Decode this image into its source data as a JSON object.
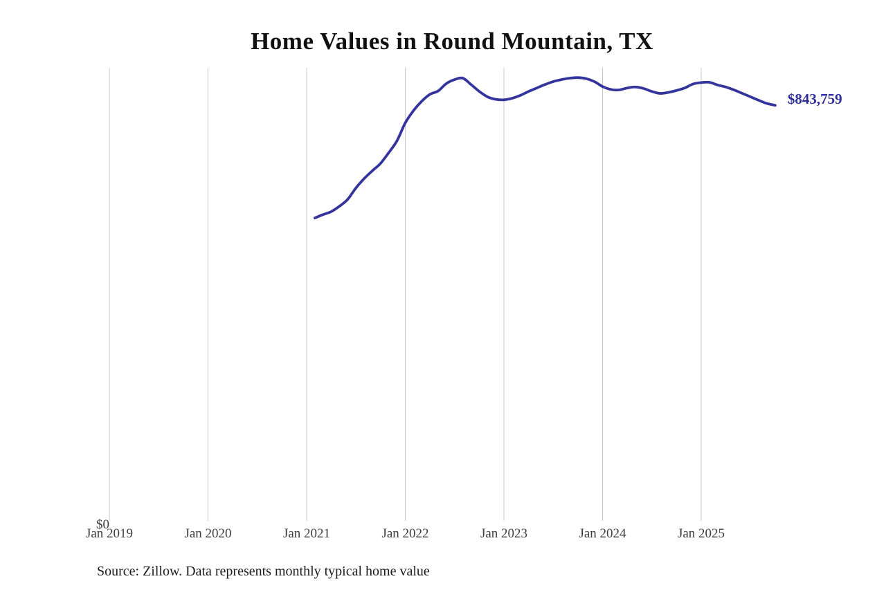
{
  "page": {
    "title": "Home Values in Round Mountain, TX",
    "source_note": "Source: Zillow. Data represents monthly typical home value"
  },
  "colors": {
    "line": "#34349d",
    "latest_value_label": "#2d2d9b",
    "gridline": "#c9c9c9",
    "title_text": "#111111",
    "axis_label": "#3c3c3c",
    "source_text": "#1b1b1b",
    "background": "#ffffff"
  },
  "chart_data": {
    "type": "line",
    "title": "Home Values in Round Mountain, TX",
    "xlabel": "",
    "ylabel": "",
    "ylim": [
      0,
      920000
    ],
    "grid": "vertical-year-gridlines",
    "legend": "none",
    "y_tick_labels": [
      "$0"
    ],
    "x_tick_labels": [
      "Jan 2019",
      "Jan 2020",
      "Jan 2021",
      "Jan 2022",
      "Jan 2023",
      "Jan 2024",
      "Jan 2025"
    ],
    "x_axis_start": "2019-01",
    "x_start_offset_months": 25,
    "latest_value": 843759,
    "latest_value_label": "$843,759",
    "x": [
      "2021-02",
      "2021-03",
      "2021-04",
      "2021-05",
      "2021-06",
      "2021-07",
      "2021-08",
      "2021-09",
      "2021-10",
      "2021-11",
      "2021-12",
      "2022-01",
      "2022-02",
      "2022-03",
      "2022-04",
      "2022-05",
      "2022-06",
      "2022-07",
      "2022-08",
      "2022-09",
      "2022-10",
      "2022-11",
      "2022-12",
      "2023-01",
      "2023-02",
      "2023-03",
      "2023-04",
      "2023-05",
      "2023-06",
      "2023-07",
      "2023-08",
      "2023-09",
      "2023-10",
      "2023-11",
      "2023-12",
      "2024-01",
      "2024-02",
      "2024-03",
      "2024-04",
      "2024-05",
      "2024-06",
      "2024-07",
      "2024-08",
      "2024-09",
      "2024-10",
      "2024-11",
      "2024-12",
      "2025-01",
      "2025-02",
      "2025-03",
      "2025-04",
      "2025-05",
      "2025-06",
      "2025-07",
      "2025-08",
      "2025-09",
      "2025-10"
    ],
    "values": [
      615000,
      622000,
      628000,
      639000,
      653000,
      676000,
      695000,
      711000,
      726000,
      748000,
      772000,
      808000,
      833000,
      852000,
      866000,
      873000,
      888000,
      896000,
      899000,
      886000,
      872000,
      861000,
      856000,
      855000,
      858000,
      864000,
      872000,
      879000,
      886000,
      892000,
      896000,
      899000,
      900000,
      898000,
      892000,
      882000,
      876000,
      875000,
      879000,
      881000,
      878000,
      872000,
      868000,
      870000,
      874000,
      879000,
      887000,
      890000,
      890500,
      885000,
      881000,
      875000,
      868000,
      861000,
      854000,
      847500,
      843759
    ]
  }
}
